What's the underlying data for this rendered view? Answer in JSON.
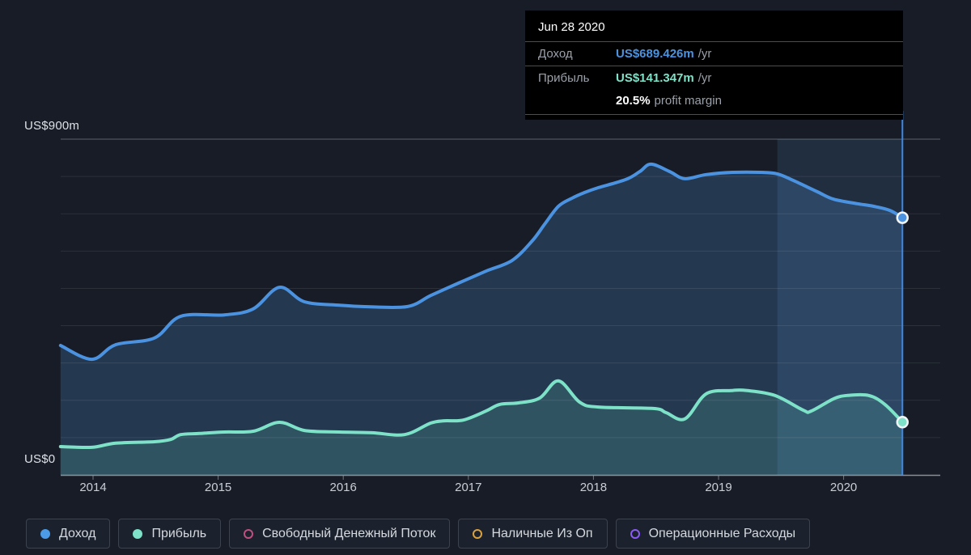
{
  "colors": {
    "background": "#171c26",
    "revenue": "#4b93e0",
    "profit": "#7de2c8",
    "free_cash_flow": "#bf4f80",
    "cash_from_op": "#d9a23e",
    "operating_expenses": "#8b5cf6",
    "revenue_fill": "rgba(80,148,218,0.24)",
    "profit_fill": "rgba(115,220,190,0.17)",
    "highlight_band": "rgba(96,156,225,0.14)",
    "grid_faint": "rgba(255,255,255,0.09)",
    "grid_top": "rgba(255,255,255,0.30)",
    "axis_line": "rgba(255,255,255,0.50)",
    "tracker_line": "#3d87e6",
    "marker_ring": "#f2f5f7"
  },
  "tooltip": {
    "date": "Jun 28 2020",
    "rows": [
      {
        "label": "Доход",
        "value": "US$689.426m",
        "suffix": "/yr",
        "color_key": "revenue"
      },
      {
        "label": "Прибыль",
        "value": "US$141.347m",
        "suffix": "/yr",
        "color_key": "profit"
      }
    ],
    "margin_value": "20.5%",
    "margin_label": "profit margin"
  },
  "y_axis": {
    "top_label": "US$900m",
    "bottom_label": "US$0"
  },
  "x_axis": {
    "years": [
      "2014",
      "2015",
      "2016",
      "2017",
      "2018",
      "2019",
      "2020"
    ]
  },
  "legend": [
    {
      "key": "revenue",
      "label": "Доход",
      "color": "#4b9be8",
      "filled": true
    },
    {
      "key": "profit",
      "label": "Прибыль",
      "color": "#7de2c8",
      "filled": true
    },
    {
      "key": "free-cash-flow",
      "label": "Свободный Денежный Поток",
      "color": "#bf4f80",
      "filled": false
    },
    {
      "key": "cash-from-op",
      "label": "Наличные Из Оп",
      "color": "#d9a23e",
      "filled": false
    },
    {
      "key": "operating-expenses",
      "label": "Операционные Расходы",
      "color": "#8b5cf6",
      "filled": false
    }
  ],
  "chart_data": {
    "type": "area",
    "title": "",
    "xlabel": "",
    "ylabel": "US$m",
    "x_range": [
      2013.74,
      2020.47
    ],
    "ylim": [
      0,
      900
    ],
    "grid": true,
    "legend_position": "bottom",
    "x_tick_labels": [
      "2014",
      "2015",
      "2016",
      "2017",
      "2018",
      "2019",
      "2020"
    ],
    "y_tick_labels": [
      "US$0",
      "US$900m"
    ],
    "highlight_span": [
      2019.47,
      2020.47
    ],
    "marker_date": "Jun 28 2020",
    "marker_x": 2020.47,
    "series": [
      {
        "name": "Доход",
        "color_key": "revenue",
        "unit": "US$m",
        "points": [
          [
            2013.74,
            347
          ],
          [
            2013.99,
            310
          ],
          [
            2014.18,
            349
          ],
          [
            2014.49,
            367
          ],
          [
            2014.7,
            425
          ],
          [
            2015.05,
            429
          ],
          [
            2015.28,
            445
          ],
          [
            2015.49,
            503
          ],
          [
            2015.69,
            464
          ],
          [
            2015.97,
            455
          ],
          [
            2016.17,
            451
          ],
          [
            2016.51,
            451
          ],
          [
            2016.7,
            481
          ],
          [
            2016.92,
            514
          ],
          [
            2017.14,
            546
          ],
          [
            2017.35,
            575
          ],
          [
            2017.51,
            627
          ],
          [
            2017.61,
            672
          ],
          [
            2017.72,
            720
          ],
          [
            2017.83,
            742
          ],
          [
            2017.93,
            757
          ],
          [
            2018.04,
            770
          ],
          [
            2018.26,
            792
          ],
          [
            2018.37,
            813
          ],
          [
            2018.46,
            833
          ],
          [
            2018.61,
            813
          ],
          [
            2018.73,
            794
          ],
          [
            2018.9,
            805
          ],
          [
            2019.11,
            811
          ],
          [
            2019.34,
            811
          ],
          [
            2019.47,
            807
          ],
          [
            2019.6,
            789
          ],
          [
            2019.79,
            759
          ],
          [
            2019.92,
            739
          ],
          [
            2020.11,
            727
          ],
          [
            2020.24,
            720
          ],
          [
            2020.37,
            709
          ],
          [
            2020.47,
            689.426
          ]
        ]
      },
      {
        "name": "Прибыль",
        "color_key": "profit",
        "unit": "US$m",
        "points": [
          [
            2013.74,
            76
          ],
          [
            2013.99,
            74
          ],
          [
            2014.18,
            85
          ],
          [
            2014.49,
            89
          ],
          [
            2014.62,
            95
          ],
          [
            2014.7,
            108
          ],
          [
            2014.85,
            111
          ],
          [
            2015.05,
            115
          ],
          [
            2015.28,
            117
          ],
          [
            2015.49,
            141
          ],
          [
            2015.69,
            119
          ],
          [
            2015.97,
            115
          ],
          [
            2016.23,
            113
          ],
          [
            2016.49,
            108
          ],
          [
            2016.7,
            139
          ],
          [
            2016.81,
            145
          ],
          [
            2016.96,
            147
          ],
          [
            2017.14,
            171
          ],
          [
            2017.25,
            189
          ],
          [
            2017.4,
            193
          ],
          [
            2017.57,
            206
          ],
          [
            2017.72,
            252
          ],
          [
            2017.89,
            195
          ],
          [
            2018.04,
            182
          ],
          [
            2018.48,
            178
          ],
          [
            2018.58,
            167
          ],
          [
            2018.73,
            150
          ],
          [
            2018.9,
            217
          ],
          [
            2019.1,
            226
          ],
          [
            2019.23,
            226
          ],
          [
            2019.45,
            213
          ],
          [
            2019.68,
            173
          ],
          [
            2019.74,
            171
          ],
          [
            2019.92,
            204
          ],
          [
            2020.03,
            213
          ],
          [
            2020.2,
            213
          ],
          [
            2020.33,
            189
          ],
          [
            2020.47,
            141.347
          ]
        ]
      }
    ]
  }
}
